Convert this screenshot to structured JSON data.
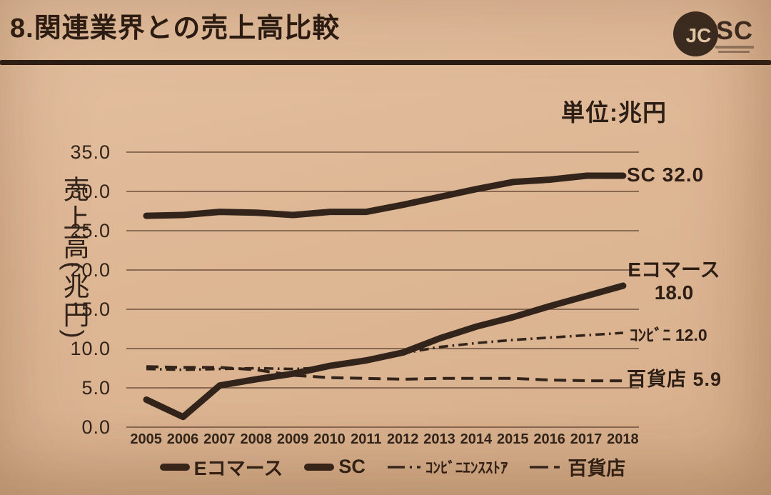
{
  "slide": {
    "title": "8.関連業界との売上高比較",
    "unit_label": "単位:兆円",
    "logo": {
      "circle_text": "JC",
      "outer_text": "SC"
    }
  },
  "chart_data": {
    "type": "line",
    "title": "関連業界との売上高比較",
    "xlabel": "",
    "ylabel": "売上高(兆円)",
    "unit": "兆円",
    "ylim": [
      0,
      35
    ],
    "ytick_step": 5,
    "yticks": [
      "35.0",
      "30.0",
      "25.0",
      "20.0",
      "15.0",
      "10.0",
      "5.0",
      "0.0"
    ],
    "grid": true,
    "legend_position": "bottom",
    "x": [
      "2005",
      "2006",
      "2007",
      "2008",
      "2009",
      "2010",
      "2011",
      "2012",
      "2013",
      "2014",
      "2015",
      "2016",
      "2017",
      "2018"
    ],
    "series": [
      {
        "name": "Eコマース",
        "legend_label": "Eコマース",
        "style": "solid-thick",
        "values": [
          3.5,
          1.3,
          5.3,
          6.1,
          6.8,
          7.8,
          8.5,
          9.5,
          11.3,
          12.8,
          14.0,
          15.4,
          16.7,
          18.0
        ]
      },
      {
        "name": "SC",
        "legend_label": "SC",
        "style": "solid-thick",
        "values": [
          26.9,
          27.0,
          27.4,
          27.3,
          27.0,
          27.4,
          27.4,
          28.3,
          29.3,
          30.3,
          31.2,
          31.5,
          32.0,
          32.0
        ]
      },
      {
        "name": "コンビニエンスストア",
        "legend_label": "ｺﾝﾋﾞﾆｴﾝｽｽﾄｱ",
        "style": "dash-dot",
        "values": [
          7.4,
          7.3,
          7.4,
          7.5,
          7.4,
          7.6,
          8.5,
          9.4,
          10.2,
          10.7,
          11.1,
          11.4,
          11.7,
          12.0
        ]
      },
      {
        "name": "百貨店",
        "legend_label": "百貨店",
        "style": "dashed",
        "values": [
          7.7,
          7.6,
          7.6,
          7.3,
          6.6,
          6.3,
          6.2,
          6.1,
          6.2,
          6.2,
          6.2,
          6.0,
          5.9,
          5.9
        ]
      }
    ],
    "annotations": {
      "sc": "SC 32.0",
      "ecommerce_line1": "Eコマース",
      "ecommerce_line2": "18.0",
      "convenience": "ｺﾝﾋﾞﾆ 12.0",
      "department": "百貨店 5.9"
    }
  },
  "colors": {
    "background": "#deb795",
    "ink": "#33241b",
    "grid": "#5a3f2e"
  }
}
